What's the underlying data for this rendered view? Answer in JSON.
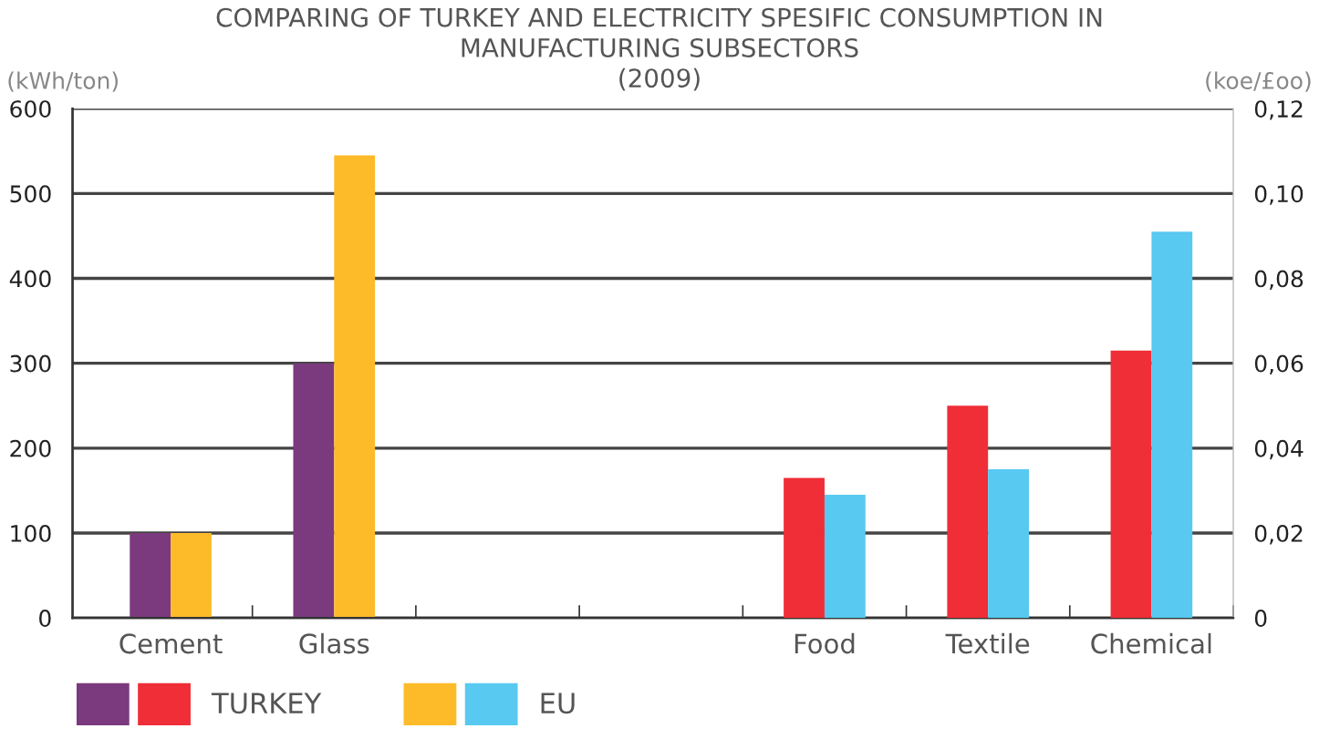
{
  "chart_data": {
    "type": "bar",
    "title": "COMPARING OF TURKEY AND ELECTRICITY SPESIFIC CONSUMPTION IN\nMANUFACTURING SUBSECTORS\n(2009)",
    "ylabel": "(kWh/ton)",
    "y2label": "(koe/£oo)",
    "categories": [
      "Cement",
      "Glass",
      null,
      null,
      "Food",
      "Textile",
      "Chemical"
    ],
    "series": [
      {
        "color": "#7b3a7e",
        "values": [
          100,
          300,
          null,
          null,
          null,
          null,
          null
        ]
      },
      {
        "color": "#fdbb2a",
        "values": [
          100,
          545,
          null,
          null,
          null,
          null,
          null
        ]
      },
      {
        "name": "TURKEY",
        "color": "#ef2e37",
        "axis": "y2",
        "values": [
          null,
          null,
          null,
          null,
          0.033,
          0.05,
          0.063
        ]
      },
      {
        "name": "EU",
        "color": "#58c9f0",
        "axis": "y2",
        "values": [
          null,
          null,
          null,
          null,
          0.029,
          0.035,
          0.091
        ]
      }
    ],
    "ylim": [
      0,
      600
    ],
    "yticks": [
      0,
      100,
      200,
      300,
      400,
      500,
      600
    ],
    "y2lim": [
      0,
      0.12
    ],
    "y2ticks": [
      0,
      {
        "value": 0.02,
        "label": "0,02"
      },
      {
        "value": 0.04,
        "label": "0,04"
      },
      {
        "value": 0.06,
        "label": "0,06"
      },
      {
        "value": 0.08,
        "label": "0,08"
      },
      {
        "value": 0.1,
        "label": "0,10"
      },
      {
        "value": 0.12,
        "label": "0,12"
      }
    ],
    "grid": "y",
    "legend": "bottom left"
  }
}
